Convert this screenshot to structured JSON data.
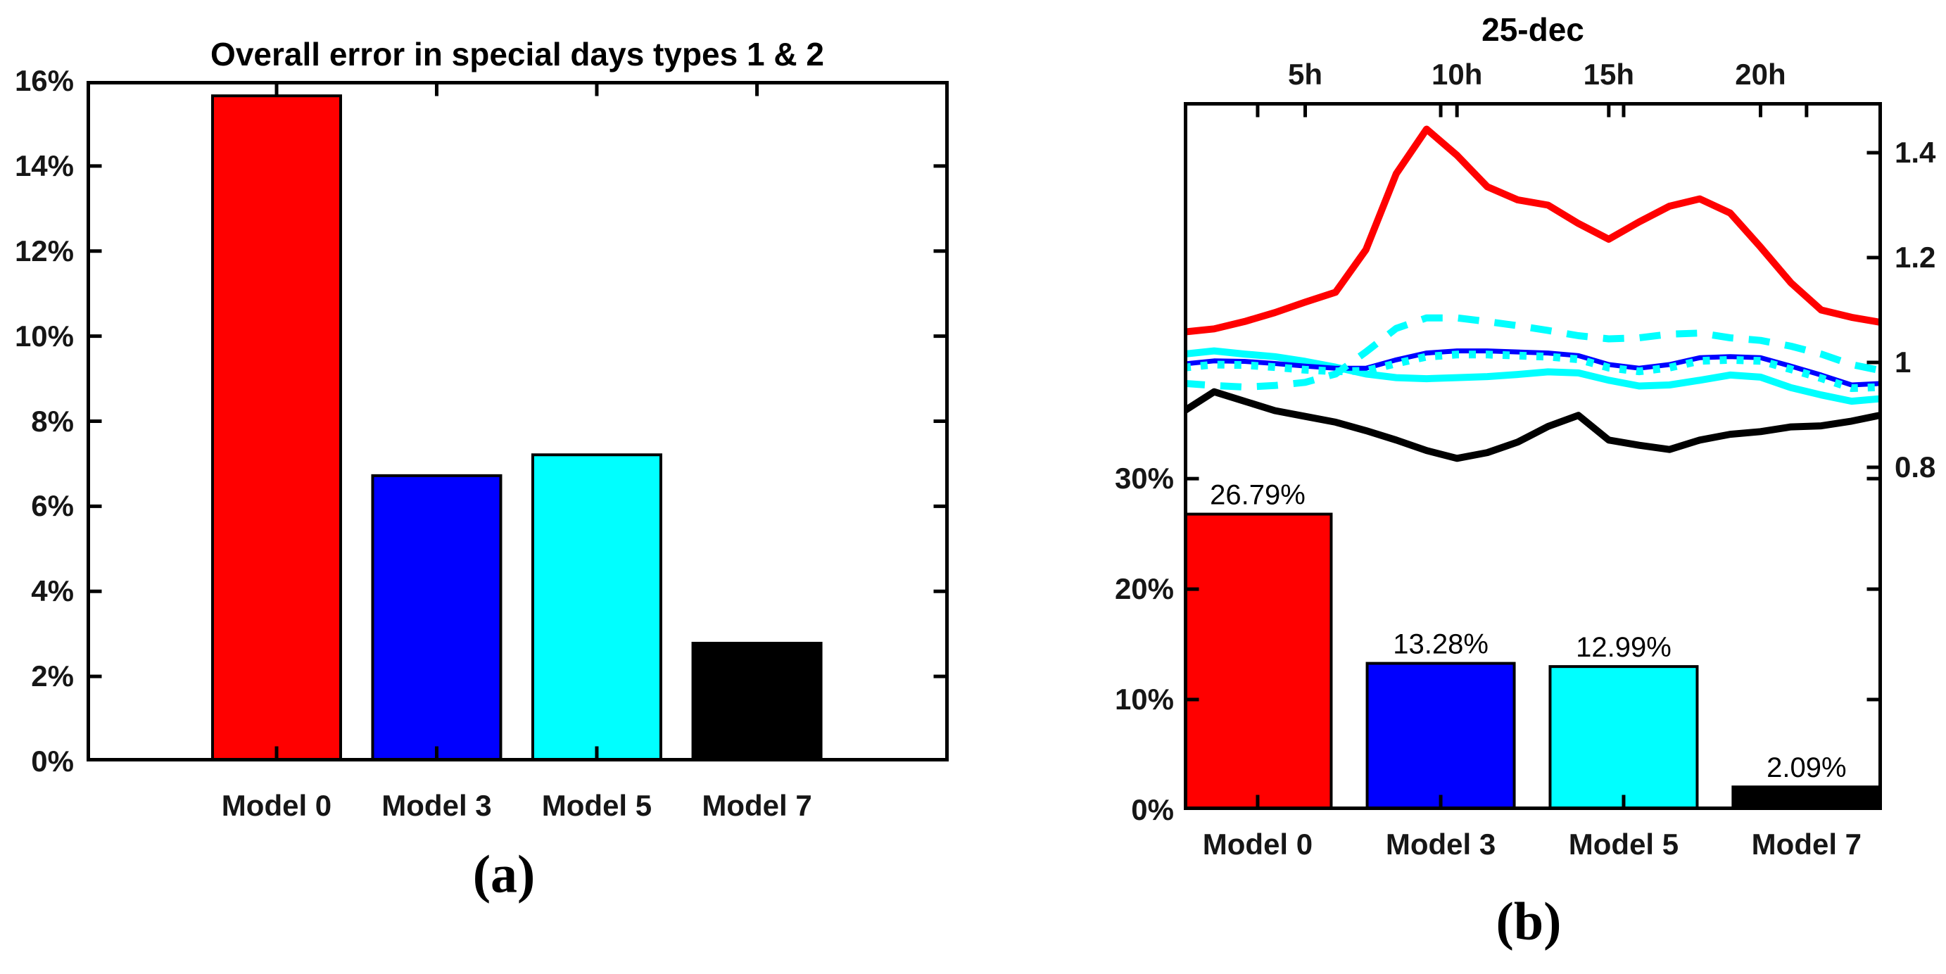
{
  "figure": {
    "background": "#ffffff"
  },
  "chart_data": [
    {
      "panel": "a",
      "type": "bar",
      "title": "Overall error in special days types 1 & 2",
      "caption": "(a)",
      "categories": [
        "Model 0",
        "Model 3",
        "Model 5",
        "Model 7"
      ],
      "values": [
        15.65,
        6.72,
        7.21,
        2.78
      ],
      "bar_colors": [
        "#ff0000",
        "#0000ff",
        "#00ffff",
        "#000000"
      ],
      "ytick_labels": [
        "0%",
        "2%",
        "4%",
        "6%",
        "8%",
        "10%",
        "12%",
        "14%",
        "16%"
      ],
      "ytick_values": [
        0,
        2,
        4,
        6,
        8,
        10,
        12,
        14,
        16
      ],
      "ylim": [
        0,
        16
      ],
      "grid": false,
      "legend": null
    },
    {
      "panel": "b",
      "type": "bar+line",
      "title": "25-dec",
      "caption": "(b)",
      "bars": {
        "categories": [
          "Model 0",
          "Model 3",
          "Model 5",
          "Model 7"
        ],
        "values": [
          26.79,
          13.28,
          12.99,
          2.09
        ],
        "value_labels": [
          "26.79%",
          "13.28%",
          "12.99%",
          "2.09%"
        ],
        "colors": [
          "#ff0000",
          "#0000ff",
          "#00ffff",
          "#000000"
        ],
        "axis_side": "left",
        "tick_labels": [
          "0%",
          "10%",
          "20%",
          "30%"
        ],
        "tick_values": [
          0,
          10,
          20,
          30
        ],
        "ylim": [
          0,
          64.1
        ]
      },
      "lines": {
        "x_hours": [
          1,
          2,
          3,
          4,
          5,
          6,
          7,
          8,
          9,
          10,
          11,
          12,
          13,
          14,
          15,
          16,
          17,
          18,
          19,
          20,
          21,
          22,
          23,
          24
        ],
        "xtick_hours": [
          5,
          10,
          15,
          20
        ],
        "xtick_labels": [
          "5h",
          "10h",
          "15h",
          "20h"
        ],
        "axis_side": "right",
        "tick_labels": [
          "1.4",
          "1.2",
          "1",
          "0.8"
        ],
        "tick_values": [
          1.4,
          1.2,
          1,
          0.8
        ],
        "ylim": [
          0.146,
          1.497
        ],
        "series": [
          {
            "name": "cyan-solid",
            "color": "#00ffff",
            "style": "solid",
            "width": 10,
            "values": [
              1.016,
              1.022,
              1.016,
              1.011,
              1.002,
              0.991,
              0.978,
              0.971,
              0.969,
              0.971,
              0.973,
              0.977,
              0.982,
              0.98,
              0.966,
              0.955,
              0.957,
              0.966,
              0.976,
              0.972,
              0.952,
              0.938,
              0.926,
              0.931
            ]
          },
          {
            "name": "blue-solid",
            "color": "#0000ff",
            "style": "solid",
            "width": 7,
            "values": [
              0.997,
              1.003,
              1.002,
              0.998,
              0.993,
              0.989,
              0.989,
              1.005,
              1.018,
              1.022,
              1.022,
              1.02,
              1.018,
              1.013,
              0.996,
              0.989,
              0.996,
              1.009,
              1.011,
              1.009,
              0.993,
              0.976,
              0.957,
              0.96
            ]
          },
          {
            "name": "cyan-dotted",
            "color": "#00ffff",
            "style": "dotted",
            "width": 11,
            "values": [
              0.99,
              0.996,
              0.995,
              0.991,
              0.986,
              0.983,
              0.984,
              0.998,
              1.011,
              1.015,
              1.015,
              1.013,
              1.011,
              1.006,
              0.99,
              0.983,
              0.99,
              1.003,
              1.005,
              1.003,
              0.987,
              0.97,
              0.951,
              0.953
            ]
          },
          {
            "name": "cyan-dashed",
            "color": "#00ffff",
            "style": "dashed",
            "width": 10,
            "values": [
              0.96,
              0.956,
              0.953,
              0.956,
              0.962,
              0.978,
              1.02,
              1.065,
              1.085,
              1.085,
              1.078,
              1.07,
              1.061,
              1.051,
              1.045,
              1.047,
              1.054,
              1.056,
              1.047,
              1.042,
              1.031,
              1.016,
              0.996,
              0.984
            ]
          },
          {
            "name": "red-solid",
            "color": "#ff0000",
            "style": "solid",
            "width": 10,
            "values": [
              1.058,
              1.064,
              1.078,
              1.095,
              1.115,
              1.134,
              1.215,
              1.36,
              1.445,
              1.395,
              1.335,
              1.31,
              1.3,
              1.265,
              1.235,
              1.268,
              1.298,
              1.312,
              1.285,
              1.22,
              1.152,
              1.1,
              1.086,
              1.076
            ]
          },
          {
            "name": "black-solid",
            "color": "#000000",
            "style": "solid",
            "width": 10,
            "values": [
              0.907,
              0.944,
              0.926,
              0.908,
              0.897,
              0.886,
              0.87,
              0.852,
              0.832,
              0.817,
              0.828,
              0.848,
              0.878,
              0.899,
              0.852,
              0.842,
              0.834,
              0.852,
              0.863,
              0.868,
              0.877,
              0.879,
              0.888,
              0.9
            ]
          }
        ]
      }
    }
  ]
}
